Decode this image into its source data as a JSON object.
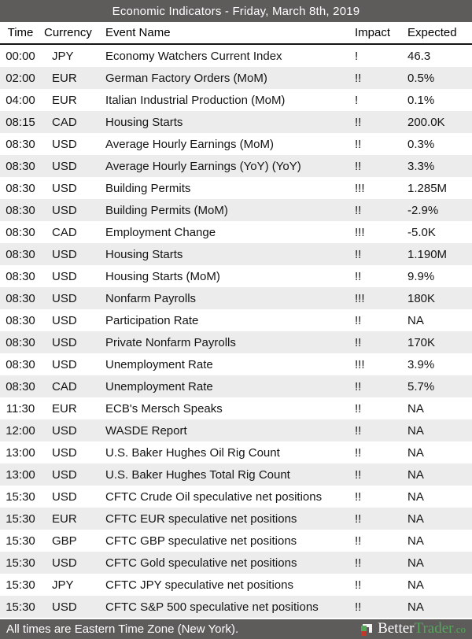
{
  "title": "Economic Indicators - Friday, March 8th, 2019",
  "table": {
    "headers": {
      "time": "Time",
      "currency": "Currency",
      "event": "Event Name",
      "impact": "Impact",
      "expected": "Expected"
    },
    "rows": [
      {
        "time": "00:00",
        "currency": "JPY",
        "event": "Economy Watchers Current Index",
        "impact": "!",
        "expected": "46.3"
      },
      {
        "time": "02:00",
        "currency": "EUR",
        "event": "German Factory Orders (MoM)",
        "impact": "!!",
        "expected": "0.5%"
      },
      {
        "time": "04:00",
        "currency": "EUR",
        "event": "Italian Industrial Production (MoM)",
        "impact": "!",
        "expected": "0.1%"
      },
      {
        "time": "08:15",
        "currency": "CAD",
        "event": "Housing Starts",
        "impact": "!!",
        "expected": "200.0K"
      },
      {
        "time": "08:30",
        "currency": "USD",
        "event": "Average Hourly Earnings (MoM)",
        "impact": "!!",
        "expected": "0.3%"
      },
      {
        "time": "08:30",
        "currency": "USD",
        "event": "Average Hourly Earnings (YoY) (YoY)",
        "impact": "!!",
        "expected": "3.3%"
      },
      {
        "time": "08:30",
        "currency": "USD",
        "event": "Building Permits",
        "impact": "!!!",
        "expected": "1.285M"
      },
      {
        "time": "08:30",
        "currency": "USD",
        "event": "Building Permits (MoM)",
        "impact": "!!",
        "expected": "-2.9%"
      },
      {
        "time": "08:30",
        "currency": "CAD",
        "event": "Employment Change",
        "impact": "!!!",
        "expected": "-5.0K"
      },
      {
        "time": "08:30",
        "currency": "USD",
        "event": "Housing Starts",
        "impact": "!!",
        "expected": "1.190M"
      },
      {
        "time": "08:30",
        "currency": "USD",
        "event": "Housing Starts (MoM)",
        "impact": "!!",
        "expected": "9.9%"
      },
      {
        "time": "08:30",
        "currency": "USD",
        "event": "Nonfarm Payrolls",
        "impact": "!!!",
        "expected": "180K"
      },
      {
        "time": "08:30",
        "currency": "USD",
        "event": "Participation Rate",
        "impact": "!!",
        "expected": "NA"
      },
      {
        "time": "08:30",
        "currency": "USD",
        "event": "Private Nonfarm Payrolls",
        "impact": "!!",
        "expected": "170K"
      },
      {
        "time": "08:30",
        "currency": "USD",
        "event": "Unemployment Rate",
        "impact": "!!!",
        "expected": "3.9%"
      },
      {
        "time": "08:30",
        "currency": "CAD",
        "event": "Unemployment Rate",
        "impact": "!!",
        "expected": "5.7%"
      },
      {
        "time": "11:30",
        "currency": "EUR",
        "event": "ECB's Mersch Speaks",
        "impact": "!!",
        "expected": "NA"
      },
      {
        "time": "12:00",
        "currency": "USD",
        "event": "WASDE Report",
        "impact": "!!",
        "expected": "NA"
      },
      {
        "time": "13:00",
        "currency": "USD",
        "event": "U.S. Baker Hughes Oil Rig Count",
        "impact": "!!",
        "expected": "NA"
      },
      {
        "time": "13:00",
        "currency": "USD",
        "event": "U.S. Baker Hughes Total Rig Count",
        "impact": "!!",
        "expected": "NA"
      },
      {
        "time": "15:30",
        "currency": "USD",
        "event": "CFTC Crude Oil speculative net positions",
        "impact": "!!",
        "expected": "NA"
      },
      {
        "time": "15:30",
        "currency": "EUR",
        "event": "CFTC EUR speculative net positions",
        "impact": "!!",
        "expected": "NA"
      },
      {
        "time": "15:30",
        "currency": "GBP",
        "event": "CFTC GBP speculative net positions",
        "impact": "!!",
        "expected": "NA"
      },
      {
        "time": "15:30",
        "currency": "USD",
        "event": "CFTC Gold speculative net positions",
        "impact": "!!",
        "expected": "NA"
      },
      {
        "time": "15:30",
        "currency": "JPY",
        "event": "CFTC JPY speculative net positions",
        "impact": "!!",
        "expected": "NA"
      },
      {
        "time": "15:30",
        "currency": "USD",
        "event": "CFTC S&P 500 speculative net positions",
        "impact": "!!",
        "expected": "NA"
      }
    ]
  },
  "footer": {
    "note": "All times are Eastern Time Zone (New York).",
    "brand": {
      "better": "Better",
      "trader": "Trader",
      "tld": ".co"
    }
  },
  "colors": {
    "bar_gray": "#5e5b5b",
    "row_alt_gray": "#ececec",
    "brand_green": "#54a759",
    "brand_red": "#c0392b"
  }
}
